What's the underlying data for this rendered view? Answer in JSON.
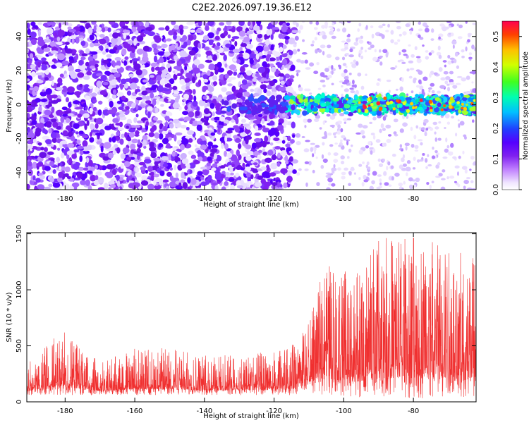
{
  "title": "C2E2.2026.097.19.36.E12",
  "chart_data": [
    {
      "type": "heatmap",
      "xlabel": "Height of straight line (km)",
      "ylabel": "Frequency (Hz)",
      "xlim": [
        -191,
        -62
      ],
      "ylim": [
        -50,
        49
      ],
      "xticks": [
        "-180",
        "-160",
        "-140",
        "-120",
        "-100",
        "-80"
      ],
      "yticks": [
        "40",
        "20",
        "0",
        "-20",
        "-40"
      ],
      "colorbar": {
        "label": "Normalized spectral amplitude",
        "range": [
          0.0,
          0.55
        ],
        "ticks": [
          "0.5",
          "0.4",
          "0.3",
          "0.2",
          "0.1",
          "0.0"
        ],
        "colors": [
          "#ffffff",
          "#f0e6ff",
          "#c080ff",
          "#8020f0",
          "#5500ff",
          "#2040ff",
          "#00d0ff",
          "#20ff90",
          "#a0ff20",
          "#ffd000",
          "#ff6000",
          "#ff0040"
        ]
      },
      "noise_region_x": [
        -191,
        -114
      ],
      "noise_region_x_faint": [
        -114,
        -62
      ],
      "signal_band": {
        "x": [
          -135,
          -62
        ],
        "center_freq": 0,
        "half_width_hz": 5,
        "peak_amplitude": 0.55
      },
      "grid": false
    },
    {
      "type": "line",
      "xlabel": "Height of straight line (km)",
      "ylabel": "SNR (10 * v/v)",
      "xlim": [
        -191,
        -62
      ],
      "ylim": [
        0,
        1510
      ],
      "xticks": [
        "-180",
        "-160",
        "-140",
        "-120",
        "-100",
        "-80"
      ],
      "yticks": [
        "1500",
        "1000",
        "500",
        "0"
      ],
      "color": "#f03030",
      "envelope": [
        {
          "x": -191,
          "low": 60,
          "high": 330
        },
        {
          "x": -181,
          "low": 60,
          "high": 640
        },
        {
          "x": -170,
          "low": 60,
          "high": 360
        },
        {
          "x": -160,
          "low": 60,
          "high": 490
        },
        {
          "x": -150,
          "low": 60,
          "high": 480
        },
        {
          "x": -140,
          "low": 60,
          "high": 420
        },
        {
          "x": -130,
          "low": 60,
          "high": 430
        },
        {
          "x": -120,
          "low": 60,
          "high": 450
        },
        {
          "x": -115,
          "low": 60,
          "high": 500
        },
        {
          "x": -110,
          "low": 70,
          "high": 700
        },
        {
          "x": -105,
          "low": 60,
          "high": 1280
        },
        {
          "x": -100,
          "low": 50,
          "high": 1180
        },
        {
          "x": -95,
          "low": 40,
          "high": 1150
        },
        {
          "x": -90,
          "low": 40,
          "high": 1480
        },
        {
          "x": -85,
          "low": 40,
          "high": 1460
        },
        {
          "x": -80,
          "low": 30,
          "high": 1510
        },
        {
          "x": -75,
          "low": 30,
          "high": 1450
        },
        {
          "x": -70,
          "low": 30,
          "high": 1340
        },
        {
          "x": -62,
          "low": 30,
          "high": 1340
        }
      ],
      "grid": false
    }
  ]
}
